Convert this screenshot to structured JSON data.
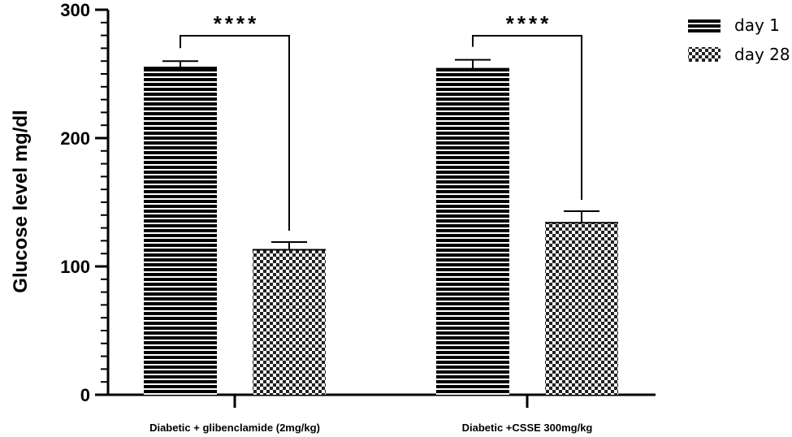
{
  "chart_data": {
    "type": "bar",
    "title": "",
    "xlabel": "",
    "ylabel": "Glucose level mg/dl",
    "ylim": [
      0,
      300
    ],
    "yticks": [
      "0",
      "100",
      "200",
      "300"
    ],
    "categories": [
      "Diabetic + glibenclamide (2mg/kg)",
      "Diabetic +CSSE 300mg/kg"
    ],
    "series": [
      {
        "name": "day 1",
        "values": [
          255,
          254
        ],
        "errors": [
          5,
          7
        ],
        "pattern": "horizontal-stripes"
      },
      {
        "name": "day 28",
        "values": [
          113,
          134
        ],
        "errors": [
          6,
          9
        ],
        "pattern": "checkerboard"
      }
    ],
    "significance": [
      {
        "category_index": 0,
        "label": "****"
      },
      {
        "category_index": 1,
        "label": "****"
      }
    ],
    "legend_position": "top-right",
    "grid": false
  }
}
